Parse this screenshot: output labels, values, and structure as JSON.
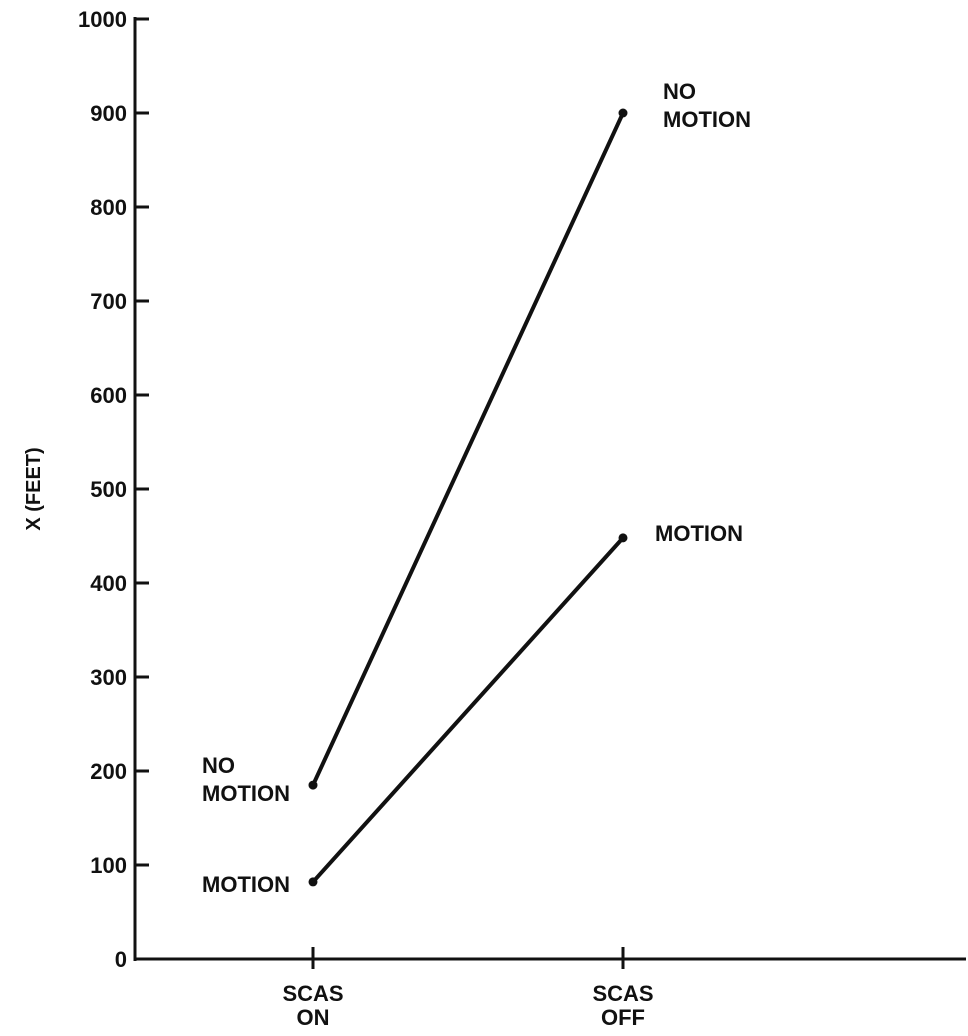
{
  "chart_data": {
    "type": "line",
    "title": "",
    "xlabel": "",
    "ylabel": "X (FEET)",
    "categories": [
      [
        "SCAS",
        "ON"
      ],
      [
        "SCAS",
        "OFF"
      ]
    ],
    "ylim": [
      0,
      1000
    ],
    "yticks": [
      0,
      100,
      200,
      300,
      400,
      500,
      600,
      700,
      800,
      900,
      1000
    ],
    "grid": false,
    "legend": "none",
    "series": [
      {
        "values": [
          185,
          900
        ],
        "labels": [
          [
            "NO",
            "MOTION"
          ],
          [
            "NO",
            "MOTION"
          ]
        ]
      },
      {
        "values": [
          82,
          448
        ],
        "labels": [
          [
            "MOTION"
          ],
          [
            "MOTION"
          ]
        ]
      }
    ],
    "colors": {
      "ink": "#111111",
      "background": "#ffffff"
    }
  }
}
